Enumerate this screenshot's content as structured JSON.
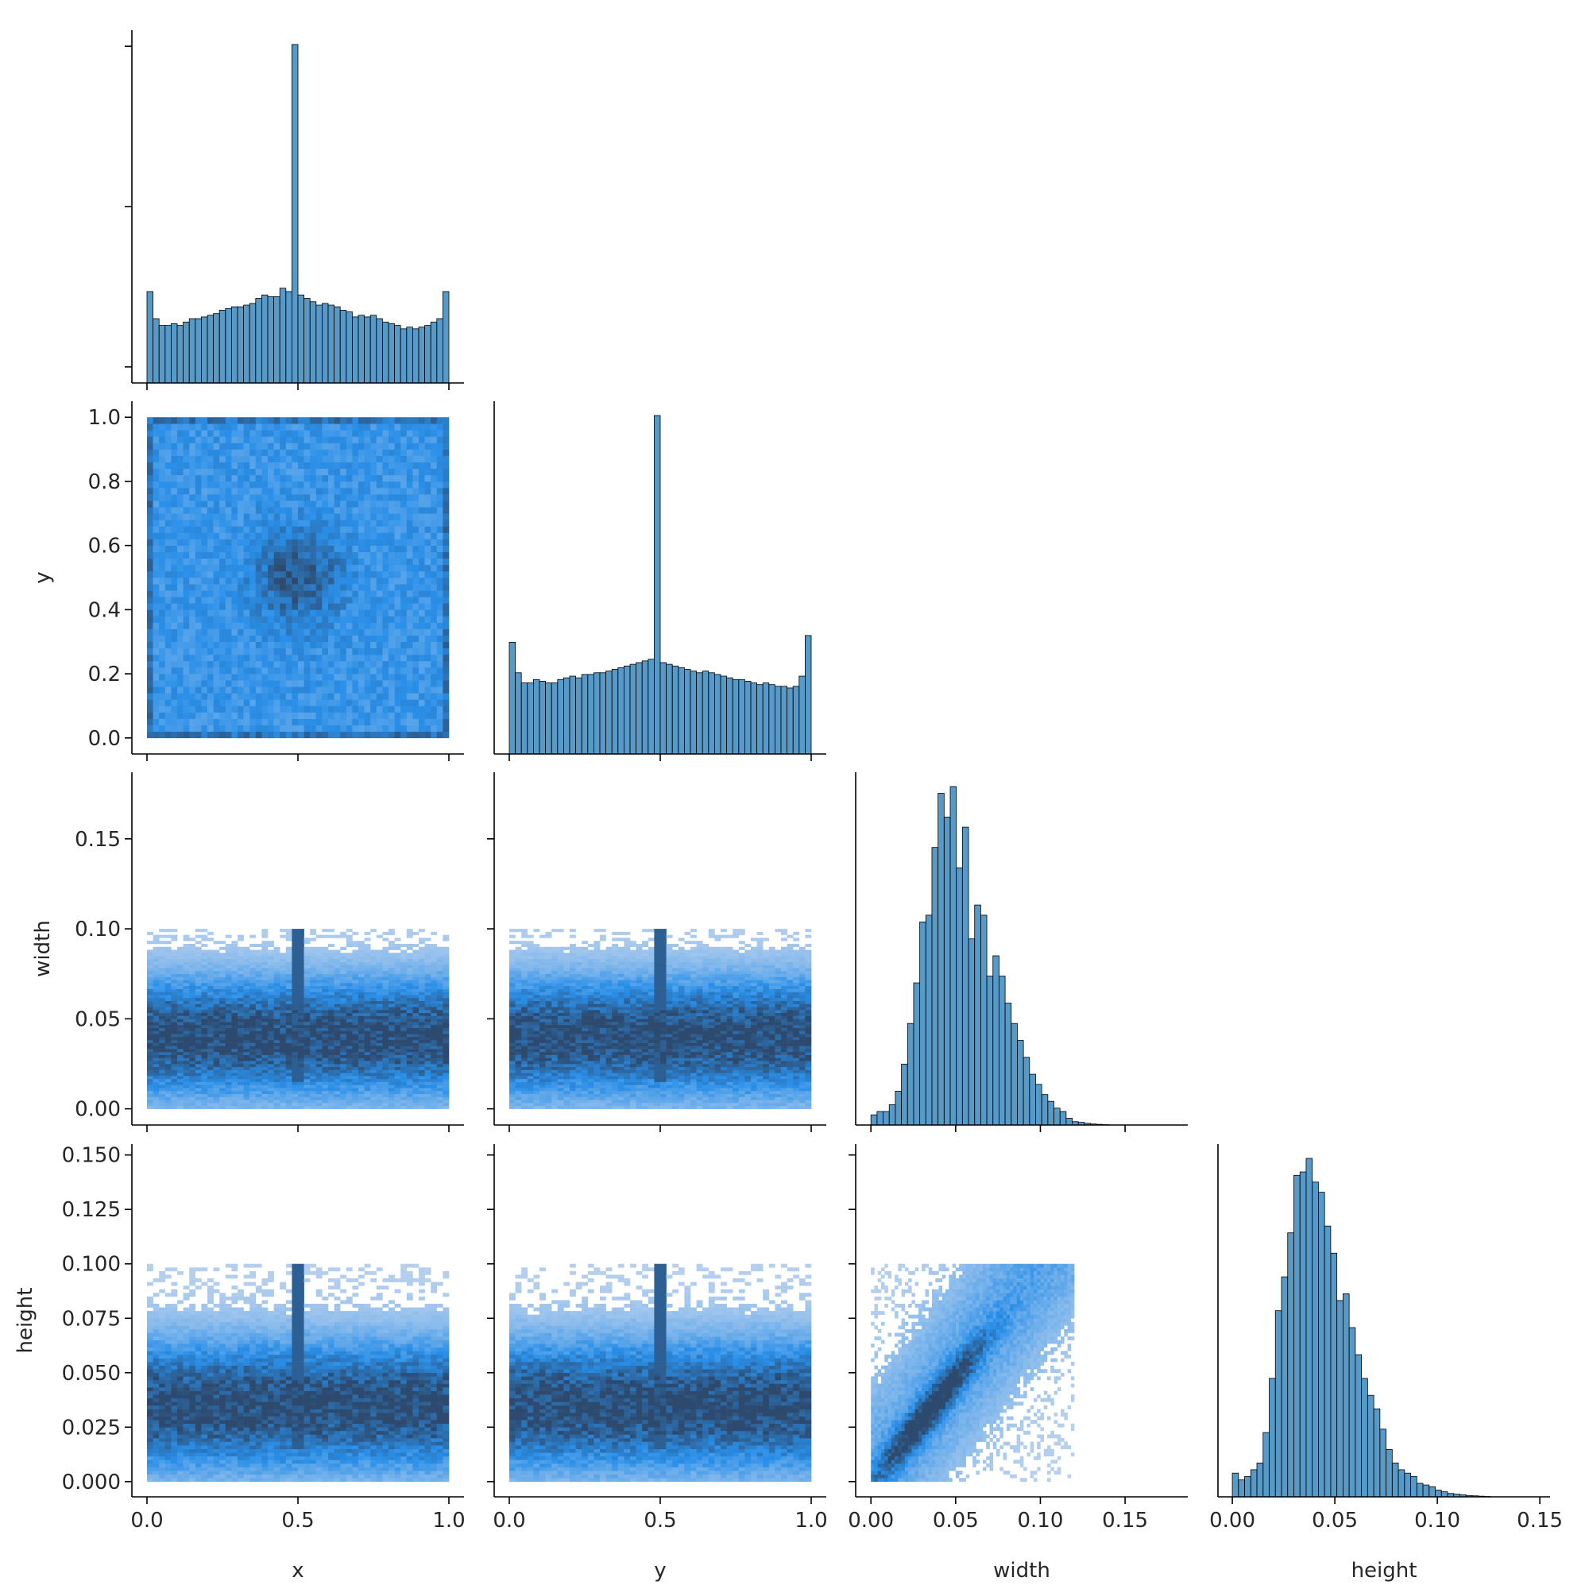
{
  "chart_data": {
    "type": "pairplot",
    "variables": [
      "x",
      "y",
      "width",
      "height"
    ],
    "corner": true,
    "bins": 50,
    "colors": {
      "hist": "#1f77b4",
      "hist_edge": "#000000",
      "heat_low": "#b7d0ee",
      "heat_mid": "#2a8fe8",
      "heat_high": "#2d4a6e"
    },
    "axes": {
      "x": {
        "label": "x",
        "lim": [
          -0.05,
          1.05
        ],
        "ticks": [
          0.0,
          0.5,
          1.0
        ],
        "tick_labels": [
          "0.0",
          "0.5",
          "1.0"
        ]
      },
      "y": {
        "label": "y",
        "lim": [
          -0.05,
          1.05
        ],
        "ticks": [
          0.0,
          0.2,
          0.4,
          0.6,
          0.8,
          1.0
        ],
        "tick_labels": [
          "0.0",
          "0.2",
          "0.4",
          "0.6",
          "0.8",
          "1.0"
        ],
        "xticks": [
          0.0,
          0.5,
          1.0
        ],
        "xtick_labels": [
          "0.0",
          "0.5",
          "1.0"
        ]
      },
      "width": {
        "label": "width",
        "lim": [
          -0.009,
          0.187
        ],
        "ticks": [
          0.0,
          0.05,
          0.1,
          0.15
        ],
        "tick_labels": [
          "0.00",
          "0.05",
          "0.10",
          "0.15"
        ]
      },
      "height": {
        "label": "height",
        "lim": [
          -0.007,
          0.155
        ],
        "ticks": [
          0.0,
          0.025,
          0.05,
          0.075,
          0.1,
          0.125,
          0.15
        ],
        "tick_labels": [
          "0.000",
          "0.025",
          "0.050",
          "0.075",
          "0.100",
          "0.125",
          "0.150"
        ],
        "xticks": [
          0.0,
          0.05,
          0.1,
          0.15
        ],
        "xtick_labels": [
          "0.00",
          "0.05",
          "0.10",
          "0.15"
        ]
      }
    },
    "histograms": {
      "x": {
        "range": [
          0,
          1
        ],
        "counts": [
          0.27,
          0.19,
          0.17,
          0.17,
          0.175,
          0.17,
          0.18,
          0.19,
          0.19,
          0.195,
          0.2,
          0.205,
          0.215,
          0.22,
          0.225,
          0.225,
          0.23,
          0.235,
          0.25,
          0.26,
          0.255,
          0.255,
          0.28,
          0.27,
          1.0,
          0.26,
          0.25,
          0.24,
          0.23,
          0.235,
          0.23,
          0.225,
          0.215,
          0.21,
          0.195,
          0.2,
          0.195,
          0.2,
          0.19,
          0.18,
          0.175,
          0.17,
          0.16,
          0.165,
          0.16,
          0.165,
          0.17,
          0.18,
          0.19,
          0.27
        ],
        "peak": 1.0
      },
      "y": {
        "range": [
          0,
          1
        ],
        "counts": [
          0.33,
          0.24,
          0.21,
          0.21,
          0.22,
          0.215,
          0.21,
          0.21,
          0.22,
          0.225,
          0.23,
          0.225,
          0.235,
          0.235,
          0.24,
          0.24,
          0.245,
          0.25,
          0.255,
          0.26,
          0.265,
          0.27,
          0.275,
          0.28,
          1.0,
          0.27,
          0.265,
          0.26,
          0.255,
          0.25,
          0.245,
          0.24,
          0.245,
          0.24,
          0.235,
          0.23,
          0.225,
          0.22,
          0.22,
          0.215,
          0.21,
          0.205,
          0.21,
          0.205,
          0.2,
          0.2,
          0.195,
          0.2,
          0.23,
          0.35
        ],
        "peak": 1.0
      },
      "width": {
        "range": [
          0,
          0.18
        ],
        "counts": [
          0.03,
          0.04,
          0.04,
          0.06,
          0.1,
          0.18,
          0.3,
          0.42,
          0.6,
          0.62,
          0.82,
          0.98,
          0.91,
          1.0,
          0.76,
          0.88,
          0.55,
          0.65,
          0.62,
          0.44,
          0.5,
          0.44,
          0.36,
          0.3,
          0.25,
          0.2,
          0.15,
          0.12,
          0.09,
          0.07,
          0.05,
          0.04,
          0.02,
          0.01,
          0.008,
          0.005,
          0.003,
          0.002,
          0.001,
          0,
          0,
          0,
          0,
          0,
          0,
          0,
          0,
          0,
          0,
          0
        ],
        "peak": 1.0
      },
      "height": {
        "range": [
          0,
          0.15
        ],
        "counts": [
          0.07,
          0.05,
          0.06,
          0.08,
          0.1,
          0.19,
          0.35,
          0.55,
          0.65,
          0.78,
          0.95,
          0.96,
          1.0,
          0.93,
          0.9,
          0.8,
          0.72,
          0.58,
          0.6,
          0.5,
          0.42,
          0.35,
          0.3,
          0.26,
          0.2,
          0.14,
          0.1,
          0.08,
          0.07,
          0.06,
          0.04,
          0.035,
          0.03,
          0.02,
          0.015,
          0.01,
          0.008,
          0.006,
          0.004,
          0.003,
          0.002,
          0.001,
          0,
          0,
          0,
          0,
          0,
          0,
          0,
          0
        ],
        "peak": 1.0
      }
    },
    "joint": [
      {
        "row": "y",
        "col": "x",
        "pattern": "uniform square, dense centre at (0.5, 0.5), dense border rows"
      },
      {
        "row": "width",
        "col": "x",
        "pattern": "band width 0.01-0.10, densest 0.02-0.06, spike at x=0.5"
      },
      {
        "row": "width",
        "col": "y",
        "pattern": "band width 0.0-0.10, densest 0.02-0.06, spike at y=0.5"
      },
      {
        "row": "height",
        "col": "x",
        "pattern": "band height 0.0-0.10, densest 0.02-0.05, spike at x=0.5"
      },
      {
        "row": "height",
        "col": "y",
        "pattern": "band height 0.01-0.10, densest 0.02-0.05, spike at y=0.5"
      },
      {
        "row": "height",
        "col": "width",
        "pattern": "positive correlation, dense diagonal from (0.02, 0.02) to (0.06, 0.06)"
      }
    ]
  }
}
